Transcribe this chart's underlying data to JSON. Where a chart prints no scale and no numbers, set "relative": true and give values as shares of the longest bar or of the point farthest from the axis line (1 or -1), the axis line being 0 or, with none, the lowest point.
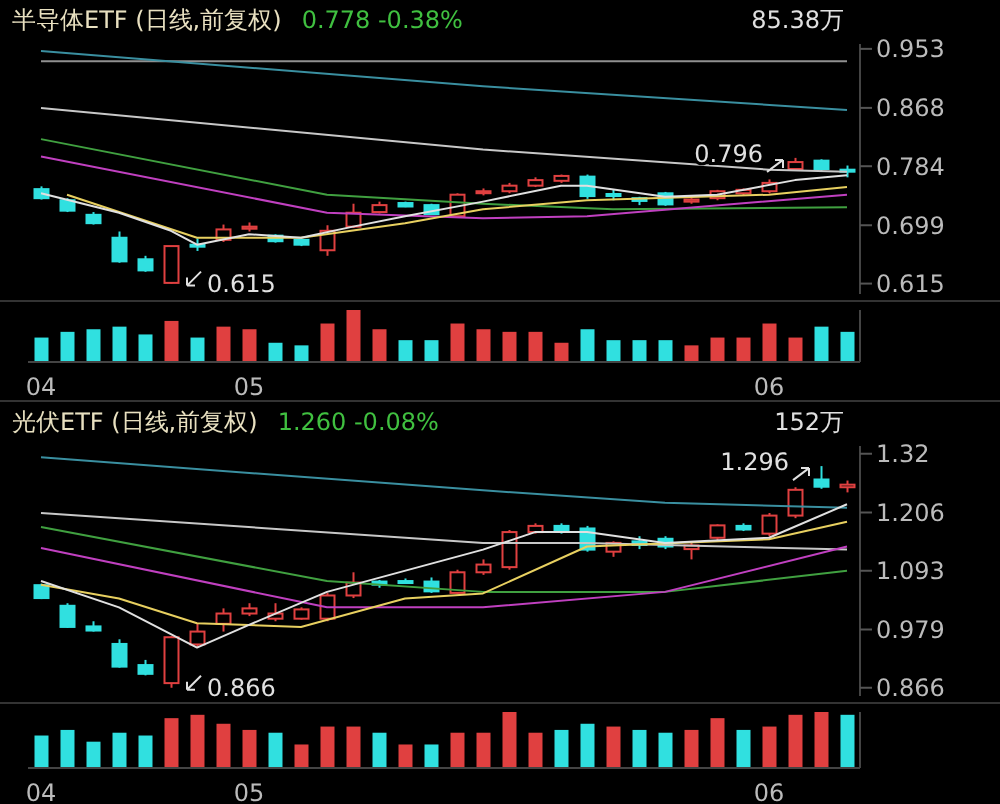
{
  "chart_data": [
    {
      "type": "candlestick",
      "title": "半导体ETF (日线,前复权)",
      "subtitle": "0.778  -0.38%",
      "categories": [
        null,
        null,
        null,
        null,
        null,
        null,
        null,
        null,
        null,
        null,
        null,
        null,
        null,
        null,
        null,
        null,
        null,
        null,
        null,
        null,
        null,
        null,
        null,
        null,
        null,
        null,
        null,
        null,
        null,
        null,
        null,
        null
      ],
      "ohlc": [
        [
          0.751,
          0.755,
          0.736,
          0.738
        ],
        [
          0.735,
          0.738,
          0.718,
          0.72
        ],
        [
          0.714,
          0.718,
          0.7,
          0.702
        ],
        [
          0.681,
          0.69,
          0.645,
          0.647
        ],
        [
          0.65,
          0.655,
          0.632,
          0.634
        ],
        [
          0.616,
          0.669,
          0.615,
          0.669
        ],
        [
          0.671,
          0.68,
          0.662,
          0.67
        ],
        [
          0.678,
          0.7,
          0.675,
          0.693
        ],
        [
          0.694,
          0.703,
          0.69,
          0.697
        ],
        [
          0.684,
          0.686,
          0.674,
          0.676
        ],
        [
          0.678,
          0.68,
          0.669,
          0.671
        ],
        [
          0.663,
          0.699,
          0.655,
          0.691
        ],
        [
          0.697,
          0.73,
          0.695,
          0.717
        ],
        [
          0.718,
          0.733,
          0.716,
          0.728
        ],
        [
          0.731,
          0.733,
          0.725,
          0.726
        ],
        [
          0.728,
          0.73,
          0.714,
          0.715
        ],
        [
          0.712,
          0.745,
          0.71,
          0.743
        ],
        [
          0.746,
          0.752,
          0.742,
          0.748
        ],
        [
          0.748,
          0.76,
          0.745,
          0.756
        ],
        [
          0.756,
          0.768,
          0.754,
          0.764
        ],
        [
          0.763,
          0.772,
          0.76,
          0.77
        ],
        [
          0.769,
          0.772,
          0.737,
          0.741
        ],
        [
          0.744,
          0.75,
          0.735,
          0.742
        ],
        [
          0.738,
          0.74,
          0.728,
          0.734
        ],
        [
          0.745,
          0.747,
          0.727,
          0.729
        ],
        [
          0.733,
          0.738,
          0.73,
          0.736
        ],
        [
          0.738,
          0.75,
          0.735,
          0.748
        ],
        [
          0.745,
          0.752,
          0.742,
          0.75
        ],
        [
          0.748,
          0.765,
          0.745,
          0.76
        ],
        [
          0.78,
          0.796,
          0.778,
          0.79
        ],
        [
          0.792,
          0.794,
          0.776,
          0.78
        ],
        [
          0.779,
          0.785,
          0.768,
          0.778
        ]
      ],
      "colors": [
        "#30e0e0",
        "#30e0e0",
        "#30e0e0",
        "#30e0e0",
        "#30e0e0",
        "#e04040",
        "#30e0e0",
        "#e04040",
        "#e04040",
        "#30e0e0",
        "#30e0e0",
        "#e04040",
        "#e04040",
        "#e04040",
        "#30e0e0",
        "#30e0e0",
        "#e04040",
        "#e04040",
        "#e04040",
        "#e04040",
        "#e04040",
        "#30e0e0",
        "#30e0e0",
        "#30e0e0",
        "#30e0e0",
        "#e04040",
        "#e04040",
        "#e04040",
        "#e04040",
        "#e04040",
        "#30e0e0",
        "#30e0e0"
      ],
      "series": [
        {
          "type": "line",
          "color": "#909090",
          "values": [
            0.935,
            null,
            null,
            null,
            null,
            null,
            null,
            null,
            null,
            null,
            null,
            null,
            null,
            null,
            null,
            null,
            null,
            null,
            null,
            null,
            null,
            null,
            null,
            null,
            null,
            null,
            null,
            null,
            null,
            null,
            null,
            0.935
          ]
        },
        {
          "type": "line",
          "color": "#3a8fa0",
          "values": [
            0.95,
            null,
            null,
            null,
            null,
            null,
            null,
            null,
            null,
            null,
            null,
            null,
            null,
            null,
            null,
            null,
            null,
            0.899,
            null,
            null,
            null,
            null,
            null,
            null,
            null,
            null,
            null,
            null,
            null,
            null,
            null,
            0.865
          ]
        },
        {
          "type": "line",
          "color": "#c8c8c8",
          "values": [
            0.868,
            null,
            null,
            null,
            null,
            null,
            null,
            null,
            null,
            null,
            null,
            null,
            null,
            null,
            null,
            null,
            null,
            0.808,
            null,
            null,
            null,
            null,
            null,
            null,
            null,
            null,
            null,
            null,
            0.779,
            null,
            null,
            0.776
          ]
        },
        {
          "type": "line",
          "color": "#40a040",
          "values": [
            0.823,
            null,
            null,
            null,
            null,
            null,
            null,
            null,
            null,
            null,
            null,
            0.743,
            null,
            null,
            null,
            null,
            null,
            0.73,
            null,
            null,
            null,
            null,
            0.722,
            null,
            null,
            null,
            null,
            null,
            null,
            null,
            null,
            0.725
          ]
        },
        {
          "type": "line",
          "color": "#c040c0",
          "values": [
            0.798,
            null,
            null,
            null,
            null,
            null,
            null,
            null,
            null,
            null,
            null,
            0.717,
            null,
            null,
            null,
            null,
            null,
            0.709,
            null,
            null,
            null,
            0.712,
            null,
            null,
            null,
            null,
            null,
            null,
            null,
            null,
            null,
            0.743
          ]
        },
        {
          "type": "line",
          "color": "#e8d060",
          "values": [
            null,
            0.743,
            null,
            null,
            null,
            null,
            0.681,
            null,
            null,
            null,
            0.681,
            null,
            null,
            null,
            0.702,
            null,
            null,
            0.722,
            null,
            null,
            null,
            0.735,
            null,
            null,
            null,
            null,
            null,
            null,
            0.743,
            null,
            null,
            0.754
          ]
        },
        {
          "type": "line",
          "color": "#e0e0e0",
          "values": [
            0.745,
            null,
            null,
            0.717,
            null,
            0.691,
            0.671,
            null,
            0.686,
            null,
            0.681,
            null,
            0.697,
            null,
            0.712,
            null,
            null,
            0.733,
            null,
            null,
            0.756,
            0.756,
            null,
            null,
            0.74,
            null,
            0.743,
            null,
            null,
            0.764,
            null,
            0.771
          ]
        }
      ],
      "ylim": [
        0.6,
        0.96
      ],
      "yticks": [
        0.953,
        0.868,
        0.784,
        0.699,
        0.615
      ],
      "tick_labels": "y",
      "annotations": [
        "0.796",
        "0.615",
        "85.38万"
      ]
    },
    {
      "type": "bar",
      "relative": true,
      "categories": [
        "04",
        null,
        null,
        null,
        null,
        null,
        null,
        null,
        "05",
        null,
        null,
        null,
        null,
        null,
        null,
        null,
        null,
        null,
        null,
        null,
        null,
        null,
        null,
        null,
        null,
        null,
        null,
        null,
        "06",
        null,
        null,
        null
      ],
      "values": [
        0.47,
        0.58,
        0.63,
        0.68,
        0.53,
        0.79,
        0.47,
        0.68,
        0.63,
        0.37,
        0.32,
        0.74,
        1,
        0.63,
        0.42,
        0.42,
        0.74,
        0.63,
        0.58,
        0.58,
        0.37,
        0.63,
        0.42,
        0.42,
        0.42,
        0.32,
        0.47,
        0.47,
        0.74,
        0.47,
        0.68,
        0.58
      ],
      "colors": [
        "#30e0e0",
        "#30e0e0",
        "#30e0e0",
        "#30e0e0",
        "#30e0e0",
        "#e04040",
        "#30e0e0",
        "#e04040",
        "#e04040",
        "#30e0e0",
        "#30e0e0",
        "#e04040",
        "#e04040",
        "#e04040",
        "#30e0e0",
        "#30e0e0",
        "#e04040",
        "#e04040",
        "#e04040",
        "#e04040",
        "#e04040",
        "#30e0e0",
        "#30e0e0",
        "#30e0e0",
        "#30e0e0",
        "#e04040",
        "#e04040",
        "#e04040",
        "#e04040",
        "#e04040",
        "#30e0e0",
        "#30e0e0"
      ]
    },
    {
      "type": "candlestick",
      "title": "光伏ETF (日线,前复权)",
      "subtitle": "1.260  -0.08%",
      "categories": [
        null,
        null,
        null,
        null,
        null,
        null,
        null,
        null,
        null,
        null,
        null,
        null,
        null,
        null,
        null,
        null,
        null,
        null,
        null,
        null,
        null,
        null,
        null,
        null,
        null,
        null,
        null,
        null,
        null,
        null,
        null,
        null
      ],
      "ohlc": [
        [
          1.065,
          1.068,
          1.038,
          1.04
        ],
        [
          1.025,
          1.03,
          0.982,
          0.984
        ],
        [
          0.985,
          0.995,
          0.975,
          0.977
        ],
        [
          0.951,
          0.96,
          0.905,
          0.907
        ],
        [
          0.91,
          0.92,
          0.89,
          0.893
        ],
        [
          0.875,
          0.966,
          0.866,
          0.964
        ],
        [
          0.95,
          0.99,
          0.945,
          0.975
        ],
        [
          0.99,
          1.02,
          0.975,
          1.01
        ],
        [
          1.01,
          1.03,
          1.005,
          1.02
        ],
        [
          1.0,
          1.03,
          0.995,
          1.01
        ],
        [
          1.0,
          1.022,
          0.998,
          1.018
        ],
        [
          1.0,
          1.05,
          0.995,
          1.045
        ],
        [
          1.045,
          1.09,
          1.04,
          1.07
        ],
        [
          1.072,
          1.075,
          1.06,
          1.066
        ],
        [
          1.073,
          1.078,
          1.068,
          1.071
        ],
        [
          1.072,
          1.08,
          1.05,
          1.053
        ],
        [
          1.05,
          1.095,
          1.048,
          1.09
        ],
        [
          1.09,
          1.115,
          1.085,
          1.105
        ],
        [
          1.1,
          1.172,
          1.095,
          1.168
        ],
        [
          1.168,
          1.185,
          1.165,
          1.18
        ],
        [
          1.18,
          1.185,
          1.165,
          1.172
        ],
        [
          1.175,
          1.18,
          1.13,
          1.134
        ],
        [
          1.13,
          1.15,
          1.12,
          1.147
        ],
        [
          1.15,
          1.16,
          1.135,
          1.143
        ],
        [
          1.155,
          1.16,
          1.135,
          1.14
        ],
        [
          1.135,
          1.148,
          1.115,
          1.142
        ],
        [
          1.157,
          1.183,
          1.15,
          1.181
        ],
        [
          1.18,
          1.185,
          1.17,
          1.173
        ],
        [
          1.165,
          1.205,
          1.16,
          1.2
        ],
        [
          1.2,
          1.255,
          1.195,
          1.25
        ],
        [
          1.27,
          1.296,
          1.252,
          1.256
        ],
        [
          1.255,
          1.268,
          1.245,
          1.26
        ]
      ],
      "colors": [
        "#30e0e0",
        "#30e0e0",
        "#30e0e0",
        "#30e0e0",
        "#30e0e0",
        "#e04040",
        "#e04040",
        "#e04040",
        "#e04040",
        "#e04040",
        "#e04040",
        "#e04040",
        "#e04040",
        "#30e0e0",
        "#30e0e0",
        "#30e0e0",
        "#e04040",
        "#e04040",
        "#e04040",
        "#e04040",
        "#30e0e0",
        "#30e0e0",
        "#e04040",
        "#30e0e0",
        "#30e0e0",
        "#e04040",
        "#e04040",
        "#30e0e0",
        "#e04040",
        "#e04040",
        "#30e0e0",
        "#e04040"
      ],
      "series": [
        {
          "type": "line",
          "color": "#3a8fa0",
          "values": [
            1.313,
            null,
            null,
            null,
            null,
            null,
            null,
            null,
            null,
            null,
            null,
            null,
            null,
            null,
            null,
            null,
            null,
            1.249,
            null,
            null,
            null,
            null,
            null,
            null,
            1.225,
            null,
            null,
            null,
            null,
            null,
            null,
            1.215
          ]
        },
        {
          "type": "line",
          "color": "#c8c8c8",
          "values": [
            1.205,
            null,
            null,
            null,
            null,
            null,
            null,
            null,
            null,
            null,
            null,
            null,
            null,
            null,
            null,
            null,
            null,
            1.147,
            null,
            null,
            null,
            1.147,
            null,
            null,
            null,
            null,
            null,
            null,
            null,
            null,
            null,
            1.134
          ]
        },
        {
          "type": "line",
          "color": "#40a040",
          "values": [
            1.178,
            null,
            null,
            null,
            null,
            null,
            null,
            null,
            null,
            null,
            null,
            1.073,
            null,
            null,
            null,
            null,
            null,
            1.052,
            null,
            null,
            null,
            null,
            null,
            null,
            1.052,
            null,
            null,
            null,
            null,
            null,
            null,
            1.093
          ]
        },
        {
          "type": "line",
          "color": "#c040c0",
          "values": [
            1.137,
            null,
            null,
            null,
            null,
            null,
            null,
            null,
            null,
            null,
            null,
            1.022,
            null,
            null,
            null,
            null,
            null,
            1.022,
            null,
            null,
            null,
            null,
            null,
            null,
            1.052,
            null,
            null,
            null,
            null,
            null,
            null,
            1.14
          ]
        },
        {
          "type": "line",
          "color": "#e8d060",
          "values": [
            1.066,
            null,
            null,
            1.039,
            null,
            null,
            0.991,
            null,
            null,
            null,
            0.984,
            null,
            null,
            null,
            1.039,
            null,
            null,
            1.049,
            null,
            null,
            null,
            1.14,
            null,
            null,
            null,
            null,
            null,
            null,
            1.154,
            null,
            null,
            1.188
          ]
        },
        {
          "type": "line",
          "color": "#e0e0e0",
          "values": [
            1.073,
            null,
            null,
            1.022,
            null,
            null,
            0.944,
            null,
            0.988,
            null,
            null,
            1.052,
            null,
            null,
            null,
            null,
            null,
            1.134,
            null,
            1.168,
            null,
            1.168,
            null,
            null,
            1.147,
            null,
            null,
            null,
            1.157,
            null,
            null,
            1.222
          ]
        }
      ],
      "ylim": [
        0.85,
        1.335
      ],
      "yticks": [
        1.32,
        1.206,
        1.093,
        0.979,
        0.866
      ],
      "tick_labels": "y",
      "annotations": [
        "1.296",
        "0.866",
        "152万"
      ]
    },
    {
      "type": "bar",
      "relative": true,
      "categories": [
        "04",
        null,
        null,
        null,
        null,
        null,
        null,
        null,
        "05",
        null,
        null,
        null,
        null,
        null,
        null,
        null,
        null,
        null,
        null,
        null,
        null,
        null,
        null,
        null,
        null,
        null,
        null,
        null,
        "06",
        null,
        null,
        null
      ],
      "values": [
        0.58,
        0.68,
        0.47,
        0.63,
        0.58,
        0.89,
        0.95,
        0.79,
        0.68,
        0.63,
        0.42,
        0.74,
        0.74,
        0.63,
        0.42,
        0.42,
        0.63,
        0.63,
        1,
        0.63,
        0.68,
        0.79,
        0.74,
        0.68,
        0.63,
        0.68,
        0.89,
        0.68,
        0.74,
        0.95,
        1,
        0.95
      ],
      "colors": [
        "#30e0e0",
        "#30e0e0",
        "#30e0e0",
        "#30e0e0",
        "#30e0e0",
        "#e04040",
        "#e04040",
        "#e04040",
        "#e04040",
        "#30e0e0",
        "#e04040",
        "#e04040",
        "#e04040",
        "#30e0e0",
        "#e04040",
        "#30e0e0",
        "#e04040",
        "#e04040",
        "#e04040",
        "#e04040",
        "#30e0e0",
        "#30e0e0",
        "#e04040",
        "#30e0e0",
        "#30e0e0",
        "#e04040",
        "#e04040",
        "#30e0e0",
        "#e04040",
        "#e04040",
        "#e04040",
        "#30e0e0"
      ]
    }
  ]
}
